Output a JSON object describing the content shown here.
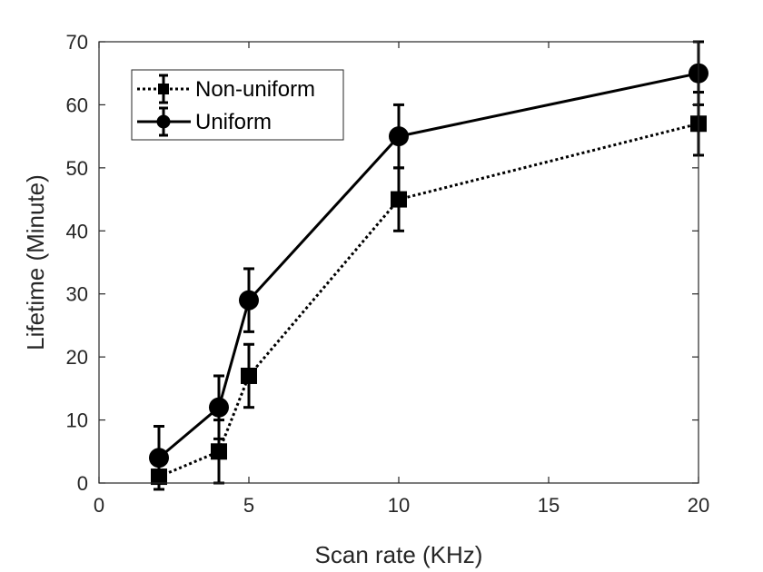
{
  "chart_data": {
    "type": "line",
    "title": "",
    "xlabel": "Scan rate (KHz)",
    "ylabel": "Lifetime (Minute)",
    "xlim": [
      0,
      20
    ],
    "ylim": [
      0,
      70
    ],
    "xticks": [
      0,
      5,
      10,
      15,
      20
    ],
    "yticks": [
      0,
      10,
      20,
      30,
      40,
      50,
      60,
      70
    ],
    "xtick_labels": [
      "0",
      "5",
      "10",
      "15",
      "20"
    ],
    "ytick_labels": [
      "0",
      "10",
      "20",
      "30",
      "40",
      "50",
      "60",
      "70"
    ],
    "grid": false,
    "legend_position": "top-left",
    "series": [
      {
        "name": "Non-uniform",
        "marker": "square",
        "line_style": "dotted",
        "color": "#000000",
        "x": [
          2,
          4,
          5,
          10,
          20
        ],
        "y": [
          1,
          5,
          17,
          45,
          57
        ],
        "error": [
          0,
          5,
          5,
          5,
          5
        ]
      },
      {
        "name": "Uniform",
        "marker": "circle",
        "line_style": "solid",
        "color": "#000000",
        "x": [
          2,
          4,
          5,
          10,
          20
        ],
        "y": [
          4,
          12,
          29,
          55,
          65
        ],
        "error": [
          5,
          5,
          5,
          5,
          5
        ]
      }
    ]
  }
}
